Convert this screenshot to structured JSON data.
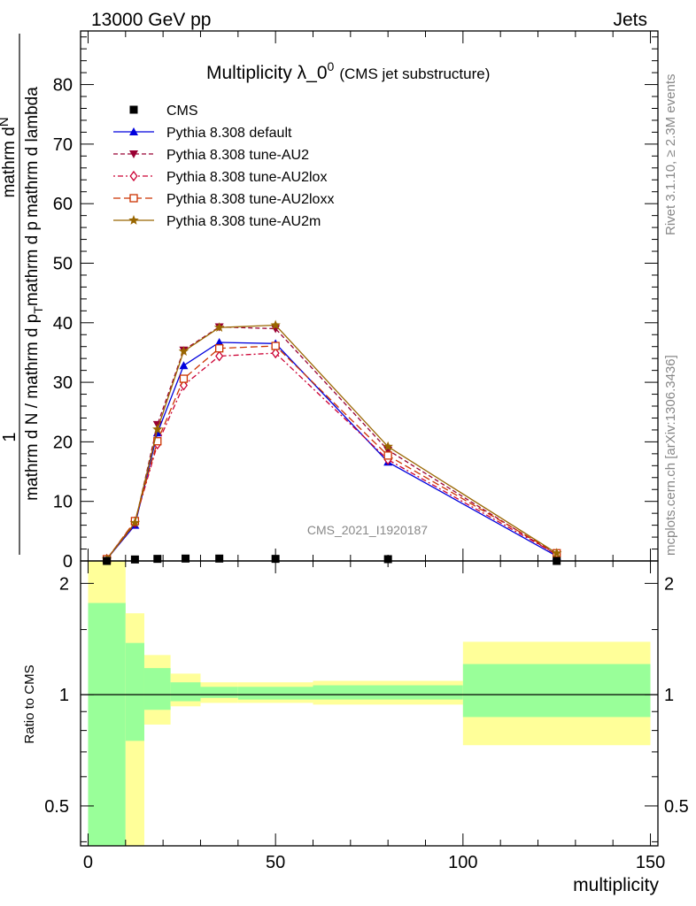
{
  "header": {
    "left": "13000 GeV pp",
    "right": "Jets"
  },
  "side": {
    "rivet": "Rivet 3.1.10, ≥ 2.3M events",
    "mcplots": "mcplots.cern.ch [arXiv:1306.3436]"
  },
  "chart_data": {
    "type": "line",
    "title": "Multiplicity λ_0",
    "title_sup": "0",
    "subtitle": "(CMS jet substructure)",
    "analysis_label": "CMS_2021_I1920187",
    "xlabel": "multiplicity",
    "ylabel_main": {
      "top": "1",
      "numerator": "mathrm d N / mathrm d p_T mathrm d lambda",
      "denominator": "mathrm d",
      "fraction_num": "mathrm d",
      "denominator_text": "mathrm d N / mathrm d p",
      "full_text_num": "mathrm d",
      "parts": [
        "1",
        "mathrm d",
        "N",
        "mathrm d N / mathrm d p",
        "T",
        "mathrm d p",
        "mathrm d lambda"
      ]
    },
    "ylabel_main_line1": "mathrm d",
    "ylabel_main_line1b": "N",
    "ylabel_main_line2": "mathrm d N / mathrm d p",
    "ylabel_main_line2sub": "T",
    "ylabel_main_line2b": "mathrm d p",
    "ylabel_main_line2c": "mathrm d lambda",
    "ylabel_main_one": "1",
    "ylabel_ratio": "Ratio to CMS",
    "xlim": [
      -2,
      152
    ],
    "ylim": [
      0,
      89
    ],
    "ratio_ylim": [
      0.39,
      2.3
    ],
    "x_ticks": [
      0,
      50,
      100,
      150
    ],
    "y_ticks": [
      0,
      10,
      20,
      30,
      40,
      50,
      60,
      70,
      80
    ],
    "ratio_ticks": [
      0.5,
      1,
      2
    ],
    "ratio_tick_labels": [
      "0.5",
      "1",
      "2"
    ],
    "bins": [
      [
        0,
        10
      ],
      [
        10,
        15
      ],
      [
        15,
        22
      ],
      [
        22,
        30
      ],
      [
        30,
        40
      ],
      [
        40,
        60
      ],
      [
        60,
        100
      ],
      [
        100,
        150
      ]
    ],
    "cms": {
      "name": "CMS",
      "x": [
        5,
        12.5,
        18.5,
        26,
        35,
        50,
        80,
        125
      ],
      "y": [
        0.0,
        0.25,
        0.35,
        0.4,
        0.4,
        0.35,
        0.3,
        0.0
      ]
    },
    "series": [
      {
        "name": "Pythia 8.308 default",
        "color": "#0000dd",
        "marker": "triangle-up",
        "dash": "",
        "x": [
          5,
          12.5,
          18.5,
          25.5,
          35,
          50,
          80,
          125
        ],
        "y": [
          0.3,
          6.0,
          21.5,
          32.8,
          36.7,
          36.5,
          16.6,
          0.8
        ]
      },
      {
        "name": "Pythia 8.308 tune-AU2",
        "color": "#990033",
        "marker": "triangle-down",
        "dash": "5,3",
        "x": [
          5,
          12.5,
          18.5,
          25.5,
          35,
          50,
          80,
          125
        ],
        "y": [
          0.3,
          6.2,
          22.9,
          35.4,
          39.3,
          39.0,
          18.6,
          1.0
        ]
      },
      {
        "name": "Pythia 8.308 tune-AU2lox",
        "color": "#cc0033",
        "marker": "diamond",
        "dash": "2,3,6,3",
        "x": [
          5,
          12.5,
          18.5,
          25.5,
          35,
          50,
          80,
          125
        ],
        "y": [
          0.3,
          6.6,
          19.6,
          29.5,
          34.4,
          34.9,
          17.0,
          1.1
        ]
      },
      {
        "name": "Pythia 8.308 tune-AU2loxx",
        "color": "#cc3300",
        "marker": "square",
        "dash": "8,4",
        "x": [
          5,
          12.5,
          18.5,
          25.5,
          35,
          50,
          80,
          125
        ],
        "y": [
          0.3,
          6.7,
          20.1,
          30.6,
          35.7,
          36.1,
          17.7,
          1.3
        ]
      },
      {
        "name": "Pythia 8.308 tune-AU2m",
        "color": "#996600",
        "marker": "star",
        "dash": "",
        "x": [
          5,
          12.5,
          18.5,
          25.5,
          35,
          50,
          80,
          125
        ],
        "y": [
          0.3,
          6.4,
          22.1,
          35.2,
          39.2,
          39.6,
          19.2,
          1.3
        ]
      }
    ],
    "ratio_bands": [
      {
        "x0": 0,
        "x1": 10,
        "yellow": [
          0.1,
          2.4
        ],
        "green": [
          0.3,
          1.77
        ]
      },
      {
        "x0": 10,
        "x1": 15,
        "yellow": [
          0.38,
          1.66
        ],
        "green": [
          0.75,
          1.38
        ]
      },
      {
        "x0": 15,
        "x1": 22,
        "yellow": [
          0.83,
          1.28
        ],
        "green": [
          0.91,
          1.18
        ]
      },
      {
        "x0": 22,
        "x1": 30,
        "yellow": [
          0.93,
          1.14
        ],
        "green": [
          0.96,
          1.08
        ]
      },
      {
        "x0": 30,
        "x1": 40,
        "yellow": [
          0.95,
          1.08
        ],
        "green": [
          0.98,
          1.05
        ]
      },
      {
        "x0": 40,
        "x1": 60,
        "yellow": [
          0.95,
          1.08
        ],
        "green": [
          0.97,
          1.05
        ]
      },
      {
        "x0": 60,
        "x1": 100,
        "yellow": [
          0.94,
          1.09
        ],
        "green": [
          0.97,
          1.06
        ]
      },
      {
        "x0": 100,
        "x1": 150,
        "yellow": [
          0.73,
          1.39
        ],
        "green": [
          0.87,
          1.21
        ]
      }
    ]
  }
}
